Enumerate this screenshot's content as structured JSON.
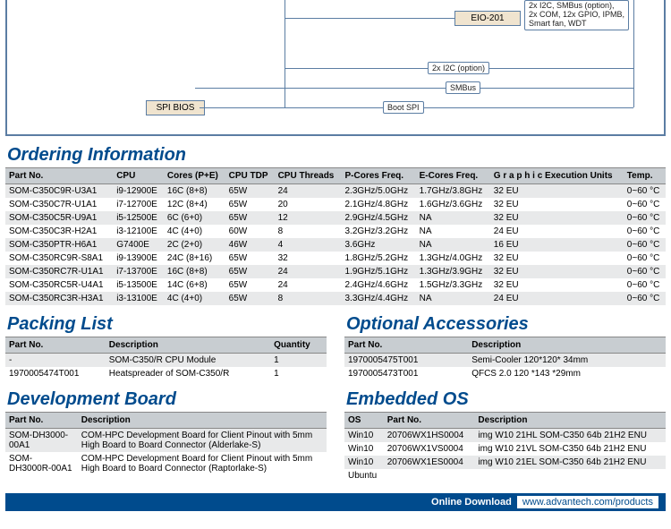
{
  "diagram": {
    "boxes": {
      "eio201": "EIO-201",
      "spibios": "SPI BIOS"
    },
    "labels": {
      "opt1": "2x I2C, SMBus (option),\n2x COM, 12x GPIO, IPMB,\nSmart fan, WDT",
      "i2c_opt": "2x I2C (option)",
      "smbus": "SMBus",
      "bootspi": "Boot SPI"
    }
  },
  "sections": {
    "ordering": "Ordering Information",
    "packing": "Packing List",
    "optacc": "Optional Accessories",
    "devboard": "Development Board",
    "embos": "Embedded OS"
  },
  "ordering": {
    "headers": [
      "Part No.",
      "CPU",
      "Cores (P+E)",
      "CPU TDP",
      "CPU Threads",
      "P-Cores Freq.",
      "E-Cores Freq.",
      "G r a p h i c Execution Units",
      "Temp."
    ],
    "rows": [
      [
        "SOM-C350C9R-U3A1",
        "i9-12900E",
        "16C (8+8)",
        "65W",
        "24",
        "2.3GHz/5.0GHz",
        "1.7GHz/3.8GHz",
        "32 EU",
        "0~60 °C"
      ],
      [
        "SOM-C350C7R-U1A1",
        "i7-12700E",
        "12C (8+4)",
        "65W",
        "20",
        "2.1GHz/4.8GHz",
        "1.6GHz/3.6GHz",
        "32 EU",
        "0~60 °C"
      ],
      [
        "SOM-C350C5R-U9A1",
        "i5-12500E",
        "6C (6+0)",
        "65W",
        "12",
        "2.9GHz/4.5GHz",
        "NA",
        "32 EU",
        "0~60 °C"
      ],
      [
        "SOM-C350C3R-H2A1",
        "i3-12100E",
        "4C (4+0)",
        "60W",
        "8",
        "3.2GHz/3.2GHz",
        "NA",
        "24 EU",
        "0~60 °C"
      ],
      [
        "SOM-C350PTR-H6A1",
        "G7400E",
        "2C (2+0)",
        "46W",
        "4",
        "3.6GHz",
        "NA",
        "16 EU",
        "0~60 °C"
      ],
      [
        "SOM-C350RC9R-S8A1",
        "i9-13900E",
        "24C (8+16)",
        "65W",
        "32",
        "1.8GHz/5.2GHz",
        "1.3GHz/4.0GHz",
        "32 EU",
        "0~60 °C"
      ],
      [
        "SOM-C350RC7R-U1A1",
        "i7-13700E",
        "16C (8+8)",
        "65W",
        "24",
        "1.9GHz/5.1GHz",
        "1.3GHz/3.9GHz",
        "32 EU",
        "0~60 °C"
      ],
      [
        "SOM-C350RC5R-U4A1",
        "i5-13500E",
        "14C (6+8)",
        "65W",
        "24",
        "2.4GHz/4.6GHz",
        "1.5GHz/3.3GHz",
        "32 EU",
        "0~60 °C"
      ],
      [
        "SOM-C350RC3R-H3A1",
        "i3-13100E",
        "4C (4+0)",
        "65W",
        "8",
        "3.3GHz/4.4GHz",
        "NA",
        "24 EU",
        "0~60 °C"
      ]
    ]
  },
  "packing": {
    "headers": [
      "Part No.",
      "Description",
      "Quantity"
    ],
    "rows": [
      [
        "-",
        "SOM-C350/R CPU Module",
        "1"
      ],
      [
        "1970005474T001",
        "Heatspreader of SOM-C350/R",
        "1"
      ]
    ]
  },
  "optacc": {
    "headers": [
      "Part No.",
      "Description"
    ],
    "rows": [
      [
        "1970005475T001",
        "Semi-Cooler 120*120* 34mm"
      ],
      [
        "1970005473T001",
        "QFCS 2.0 120 *143 *29mm"
      ]
    ]
  },
  "devboard": {
    "headers": [
      "Part No.",
      "Description"
    ],
    "rows": [
      [
        "SOM-DH3000-00A1",
        "COM-HPC Development Board for Client Pinout with 5mm High Board to Board Connector (Alderlake-S)"
      ],
      [
        "SOM-DH3000R-00A1",
        "COM-HPC Development Board for Client Pinout with 5mm High Board to Board Connector (Raptorlake-S)"
      ]
    ]
  },
  "embos": {
    "headers": [
      "OS",
      "Part No.",
      "Description"
    ],
    "rows": [
      [
        "Win10",
        "20706WX1HS0004",
        "img W10 21HL SOM-C350 64b 21H2 ENU"
      ],
      [
        "Win10",
        "20706WX1VS0004",
        "img W10 21VL SOM-C350 64b 21H2 ENU"
      ],
      [
        "Win10",
        "20706WX1ES0004",
        "img W10 21EL SOM-C350 64b 21H2 ENU"
      ],
      [
        "Ubuntu",
        "",
        ""
      ]
    ]
  },
  "footer": {
    "label": "Online Download",
    "url": "www.advantech.com/products"
  }
}
